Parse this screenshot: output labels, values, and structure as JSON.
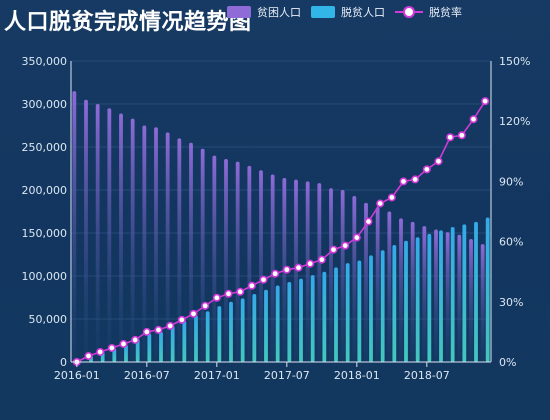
{
  "title": "人口脱贫完成情况趋势图",
  "legend": [
    {
      "name": "贫困人口",
      "type": "bar",
      "color": "#8f6bd8"
    },
    {
      "name": "脱贫人口",
      "type": "bar",
      "color": "#32b6e8"
    },
    {
      "name": "脱贫率",
      "type": "line",
      "color": "#d13ad9"
    }
  ],
  "colors": {
    "background": "#163a63",
    "axis": "#dbe7f3",
    "grid": "#2e5685",
    "poverty_top": "#8f6bd8",
    "poverty_bottom": "#1a4675",
    "relief_top": "#35a9e8",
    "relief_bottom": "#43c7bd",
    "rate_line": "#d13ad9",
    "rate_marker_fill": "#ffffff"
  },
  "chart_data": {
    "type": "bar-line",
    "x": [
      "2016-01",
      "2016-02",
      "2016-03",
      "2016-04",
      "2016-05",
      "2016-06",
      "2016-07",
      "2016-08",
      "2016-09",
      "2016-10",
      "2016-11",
      "2016-12",
      "2017-01",
      "2017-02",
      "2017-03",
      "2017-04",
      "2017-05",
      "2017-06",
      "2017-07",
      "2017-08",
      "2017-09",
      "2017-10",
      "2017-11",
      "2017-12",
      "2018-01",
      "2018-02",
      "2018-03",
      "2018-04",
      "2018-05",
      "2018-06",
      "2018-07",
      "2018-08",
      "2018-09",
      "2018-10",
      "2018-11",
      "2018-12"
    ],
    "x_ticks": [
      "2016-01",
      "2016-07",
      "2017-01",
      "2017-07",
      "2018-01",
      "2018-07"
    ],
    "y_left": {
      "min": 0,
      "max": 350000,
      "ticks": [
        0,
        50000,
        100000,
        150000,
        200000,
        250000,
        300000,
        350000
      ],
      "tick_labels": [
        "0",
        "50,000",
        "100,000",
        "150,000",
        "200,000",
        "250,000",
        "300,000",
        "350,000"
      ]
    },
    "y_right": {
      "min": 0,
      "max": 150,
      "ticks": [
        0,
        30,
        60,
        90,
        120,
        150
      ],
      "tick_labels": [
        "0%",
        "30%",
        "60%",
        "90%",
        "120%",
        "150%"
      ]
    },
    "series": [
      {
        "name": "贫困人口",
        "type": "bar",
        "axis": "left",
        "values": [
          315000,
          305000,
          300000,
          295000,
          289000,
          283000,
          275000,
          273000,
          267000,
          260000,
          255000,
          248000,
          240000,
          236000,
          233000,
          228000,
          223000,
          218000,
          214000,
          212000,
          210000,
          208000,
          202000,
          200000,
          193000,
          185000,
          180000,
          175000,
          167000,
          163000,
          158000,
          154000,
          151000,
          148000,
          143000,
          137000
        ]
      },
      {
        "name": "脱贫人口",
        "type": "bar",
        "axis": "left",
        "values": [
          2000,
          8000,
          12000,
          16000,
          20000,
          27000,
          33000,
          35000,
          42000,
          48000,
          54000,
          59000,
          65000,
          70000,
          74000,
          79000,
          84000,
          89000,
          93000,
          97000,
          101000,
          105000,
          110000,
          115000,
          118000,
          124000,
          130000,
          136000,
          141000,
          145000,
          149000,
          153000,
          157000,
          160000,
          163000,
          168000
        ]
      },
      {
        "name": "脱贫率",
        "type": "line",
        "axis": "right",
        "values": [
          0,
          3,
          5,
          7,
          9,
          11,
          15,
          16,
          18,
          21,
          24,
          28,
          32,
          34,
          35,
          38,
          41,
          44,
          46,
          47,
          49,
          51,
          56,
          58,
          62,
          70,
          79,
          82,
          90,
          91,
          96,
          100,
          112,
          113,
          121,
          130
        ]
      }
    ]
  }
}
